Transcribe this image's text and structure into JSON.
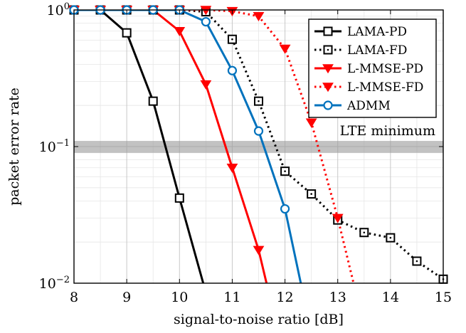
{
  "chart_data": {
    "type": "line",
    "title": "",
    "xlabel": "signal-to-noise ratio [dB]",
    "ylabel": "packet error rate",
    "xlim": [
      8,
      15
    ],
    "ylim": [
      0.01,
      1
    ],
    "yscale": "log",
    "grid": true,
    "legend_position": "top-right",
    "x_ticks": [
      8,
      9,
      10,
      11,
      12,
      13,
      14,
      15
    ],
    "x_tick_labels": [
      "8",
      "9",
      "10",
      "11",
      "12",
      "13",
      "14",
      "15"
    ],
    "y_ticks": [
      0.01,
      0.1,
      1
    ],
    "y_tick_labels": [
      {
        "base": "10",
        "exp": "−2"
      },
      {
        "base": "10",
        "exp": "−1"
      },
      {
        "base": "10",
        "exp": "0"
      }
    ],
    "annotation": {
      "text": "LTE minimum",
      "band": [
        0.09,
        0.11
      ]
    },
    "series": [
      {
        "name": "LAMA-PD",
        "color": "#000000",
        "line": "solid",
        "marker": "square",
        "x": [
          8,
          8.5,
          9,
          9.5,
          10,
          10.45
        ],
        "y": [
          1,
          1,
          0.68,
          0.215,
          0.042,
          0.01
        ]
      },
      {
        "name": "LAMA-FD",
        "color": "#000000",
        "line": "dotted",
        "marker": "square-dot",
        "x": [
          8,
          8.5,
          9,
          9.5,
          10,
          10.5,
          11,
          11.5,
          12,
          12.5,
          13,
          13.5,
          14,
          14.5,
          15
        ],
        "y": [
          1,
          1,
          1,
          1,
          1,
          0.97,
          0.61,
          0.215,
          0.066,
          0.045,
          0.029,
          0.0235,
          0.0215,
          0.0145,
          0.0107
        ]
      },
      {
        "name": "L-MMSE-PD",
        "color": "#ff0000",
        "line": "solid",
        "marker": "triangle-down",
        "x": [
          8,
          8.5,
          9,
          9.5,
          10,
          10.5,
          11,
          11.5,
          11.65
        ],
        "y": [
          1,
          1,
          1,
          1,
          0.7,
          0.285,
          0.07,
          0.0175,
          0.01
        ]
      },
      {
        "name": "L-MMSE-FD",
        "color": "#ff0000",
        "line": "dotted",
        "marker": "triangle-down",
        "x": [
          8,
          8.5,
          9,
          9.5,
          10,
          10.5,
          11,
          11.5,
          12,
          12.5,
          13,
          13.3
        ],
        "y": [
          1,
          1,
          1,
          1,
          1,
          1,
          0.98,
          0.9,
          0.52,
          0.15,
          0.03,
          0.01
        ]
      },
      {
        "name": "ADMM",
        "color": "#0072bd",
        "line": "solid",
        "marker": "circle",
        "x": [
          8,
          8.5,
          9,
          9.5,
          10,
          10.5,
          11,
          11.5,
          12,
          12.3
        ],
        "y": [
          1,
          1,
          1,
          1,
          1,
          0.82,
          0.36,
          0.13,
          0.035,
          0.01
        ]
      }
    ]
  }
}
